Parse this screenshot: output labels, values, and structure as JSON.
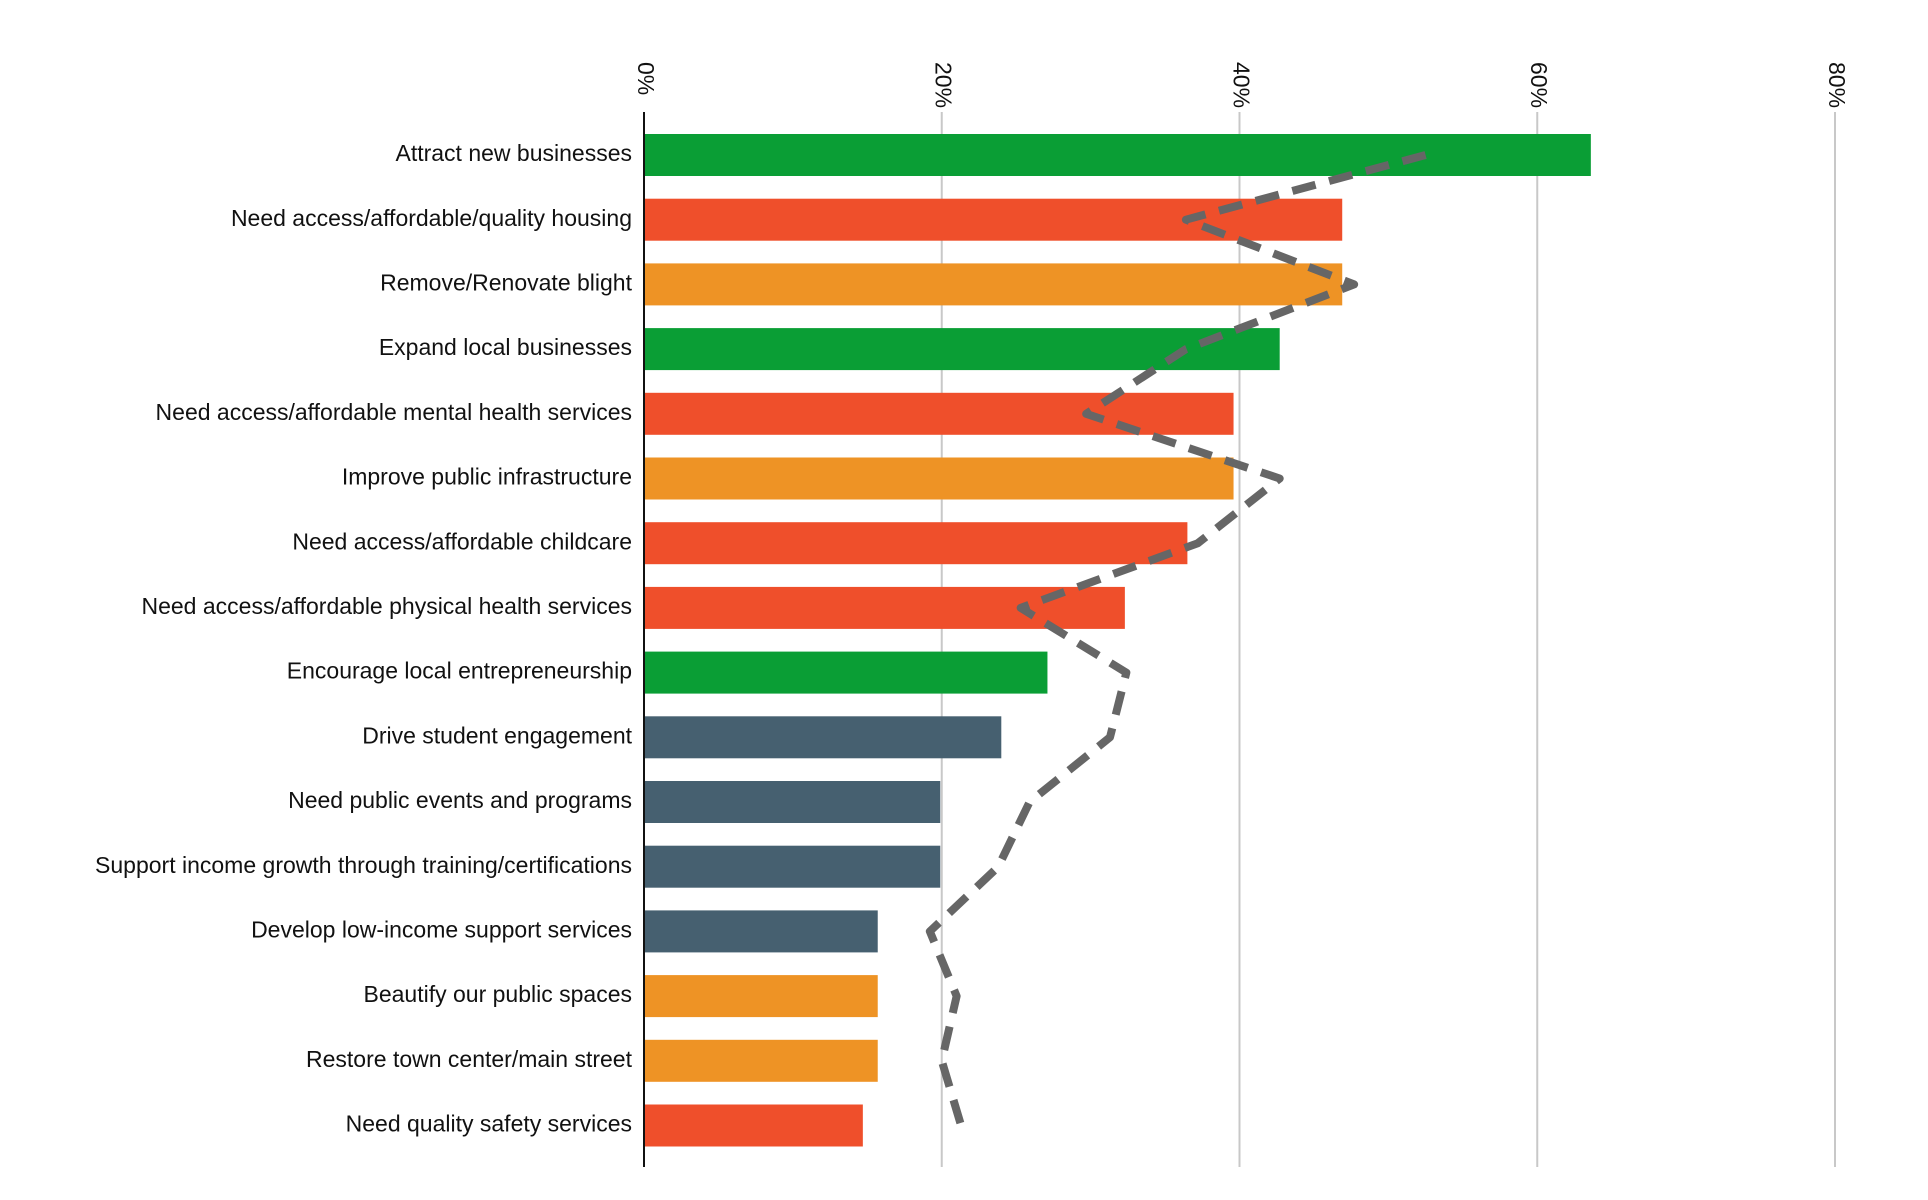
{
  "chart_data": {
    "type": "bar",
    "orientation": "horizontal",
    "categories": [
      "Attract new businesses",
      "Need access/affordable/quality housing",
      "Remove/Renovate blight",
      "Expand local businesses",
      "Need access/affordable mental health services",
      "Improve public infrastructure",
      "Need access/affordable childcare",
      "Need access/affordable physical health services",
      "Encourage local entrepreneurship",
      "Drive student engagement",
      "Need public events and programs",
      "Support income growth through training/certifications",
      "Develop low-income support services",
      "Beautify our public spaces",
      "Restore town center/main street",
      "Need quality safety services"
    ],
    "series": [
      {
        "type": "bar",
        "values": [
          63.6,
          46.9,
          46.9,
          42.7,
          39.6,
          39.6,
          36.5,
          32.3,
          27.1,
          24.0,
          19.9,
          19.9,
          15.7,
          15.7,
          15.7,
          14.7
        ],
        "colors": [
          "#0a9e35",
          "#ef4f2b",
          "#ee9325",
          "#0a9e35",
          "#ef4f2b",
          "#ee9325",
          "#ef4f2b",
          "#ef4f2b",
          "#0a9e35",
          "#466070",
          "#466070",
          "#466070",
          "#466070",
          "#ee9325",
          "#ee9325",
          "#ef4f2b"
        ]
      },
      {
        "type": "line",
        "dashed": true,
        "color": "#666666",
        "values": [
          52.5,
          36.4,
          47.7,
          36.4,
          29.7,
          42.7,
          37.2,
          25.3,
          32.4,
          31.3,
          25.9,
          23.8,
          19.2,
          21.0,
          20.0,
          21.3
        ]
      }
    ],
    "xlim": [
      0,
      80
    ],
    "xticks": [
      {
        "value": 0,
        "label": "0%"
      },
      {
        "value": 20,
        "label": "20%"
      },
      {
        "value": 40,
        "label": "40%"
      },
      {
        "value": 60,
        "label": "60%"
      },
      {
        "value": 80,
        "label": "80%"
      }
    ],
    "grid": true
  }
}
